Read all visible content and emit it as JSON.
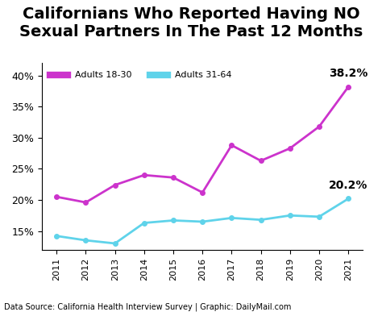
{
  "chart_data": {
    "type": "line",
    "title": "Californians Who Reported Having NO Sexual Partners In The Past 12 Months",
    "source": "Data Source: California Health Interview Survey | Graphic: DailyMail.com",
    "categories": [
      "2011",
      "2012",
      "2013",
      "2014",
      "2015",
      "2016",
      "2017",
      "2018",
      "2019",
      "2020",
      "2021"
    ],
    "series": [
      {
        "name": "Adults 18-30",
        "color": "#cc33cc",
        "marker": "o",
        "line_style": "solid",
        "values": [
          20.5,
          19.6,
          22.4,
          24.0,
          23.6,
          21.2,
          28.8,
          26.3,
          28.3,
          31.8,
          38.2
        ]
      },
      {
        "name": "Adults 31-64",
        "color": "#5fd3ea",
        "marker": "o",
        "line_style": "solid",
        "values": [
          14.2,
          13.5,
          13.0,
          16.3,
          16.7,
          16.5,
          17.1,
          16.8,
          17.5,
          17.3,
          20.2
        ]
      }
    ],
    "annotations": [
      {
        "text": "38.2%",
        "x": "2021",
        "y": 38.2
      },
      {
        "text": "20.2%",
        "x": "2021",
        "y": 20.2
      }
    ],
    "ylim": [
      12,
      42
    ],
    "yticks": [
      {
        "value": 15,
        "label": "15%"
      },
      {
        "value": 20,
        "label": "20%"
      },
      {
        "value": 25,
        "label": "25%"
      },
      {
        "value": 30,
        "label": "30%"
      },
      {
        "value": 35,
        "label": "35%"
      },
      {
        "value": 40,
        "label": "40%"
      }
    ],
    "grid": false,
    "legend": "upper left"
  }
}
